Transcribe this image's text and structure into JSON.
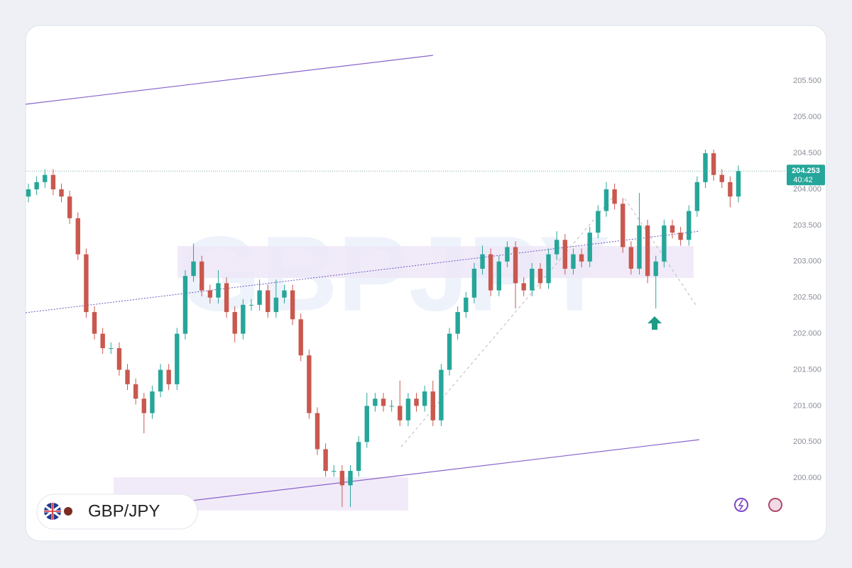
{
  "chart_data": {
    "type": "candlestick",
    "symbol": "GBP/JPY",
    "watermark": "GBPJPY",
    "last_price": 204.253,
    "countdown": "40:42",
    "up_color": "#26a69a",
    "down_color": "#c9584f",
    "ylim": [
      199.55,
      206.23
    ],
    "yticks": [
      {
        "value": 200,
        "label": "200.000"
      },
      {
        "value": 200.5,
        "label": "200.500"
      },
      {
        "value": 201,
        "label": "201.000"
      },
      {
        "value": 201.5,
        "label": "201.500"
      },
      {
        "value": 202,
        "label": "202.000"
      },
      {
        "value": 202.5,
        "label": "202.500"
      },
      {
        "value": 203,
        "label": "203.000"
      },
      {
        "value": 203.5,
        "label": "203.500"
      },
      {
        "value": 204,
        "label": "204.000"
      },
      {
        "value": 204.5,
        "label": "204.500"
      },
      {
        "value": 205,
        "label": "205.000"
      },
      {
        "value": 205.5,
        "label": "205.500"
      }
    ],
    "open": [
      203.9,
      204.0,
      204.1,
      204.2,
      204.0,
      203.9,
      203.6,
      203.1,
      202.3,
      202.0,
      201.8,
      201.8,
      201.5,
      201.3,
      201.1,
      200.9,
      201.2,
      201.5,
      201.3,
      202.0,
      202.8,
      203.0,
      202.6,
      202.5,
      202.7,
      202.3,
      202.0,
      202.4,
      202.4,
      202.6,
      202.3,
      202.5,
      202.6,
      202.2,
      201.7,
      200.9,
      200.4,
      200.1,
      200.1,
      199.9,
      200.1,
      200.5,
      201.0,
      201.1,
      201.0,
      201.0,
      200.8,
      201.1,
      201.0,
      201.2,
      200.8,
      201.5,
      202.0,
      202.3,
      202.5,
      202.9,
      203.1,
      202.6,
      203.0,
      203.2,
      202.7,
      202.6,
      202.9,
      202.7,
      203.1,
      203.3,
      202.9,
      203.1,
      203.0,
      203.4,
      203.7,
      204.0,
      203.8,
      203.2,
      202.9,
      203.5,
      202.8,
      203.0,
      203.5,
      203.4,
      203.3,
      203.7,
      204.1,
      204.5,
      204.2,
      204.1,
      203.9
    ],
    "close": [
      204.0,
      204.1,
      204.2,
      204.0,
      203.9,
      203.6,
      203.1,
      202.3,
      202.0,
      201.8,
      201.8,
      201.5,
      201.3,
      201.1,
      200.9,
      201.2,
      201.5,
      201.3,
      202.0,
      202.8,
      203.0,
      202.6,
      202.5,
      202.7,
      202.3,
      202.0,
      202.4,
      202.4,
      202.6,
      202.3,
      202.5,
      202.6,
      202.2,
      201.7,
      200.9,
      200.4,
      200.1,
      200.1,
      199.9,
      200.1,
      200.5,
      201.0,
      201.1,
      201.0,
      201.0,
      200.8,
      201.1,
      201.0,
      201.2,
      200.8,
      201.5,
      202.0,
      202.3,
      202.5,
      202.9,
      203.1,
      202.6,
      203.0,
      203.2,
      202.7,
      202.6,
      202.9,
      202.7,
      203.1,
      203.3,
      202.9,
      203.1,
      203.0,
      203.4,
      203.7,
      204.0,
      203.8,
      203.2,
      202.9,
      203.5,
      202.8,
      203.0,
      203.5,
      203.4,
      203.3,
      203.7,
      204.1,
      204.5,
      204.2,
      204.1,
      203.9,
      204.253
    ],
    "high": [
      204.08,
      204.18,
      204.28,
      204.28,
      204.08,
      203.98,
      203.68,
      203.18,
      202.38,
      202.08,
      201.88,
      201.88,
      201.58,
      201.38,
      201.18,
      201.28,
      201.58,
      201.58,
      202.08,
      202.88,
      203.25,
      203.08,
      202.68,
      202.88,
      202.78,
      202.38,
      202.48,
      202.48,
      202.75,
      202.68,
      202.75,
      202.68,
      202.68,
      202.28,
      201.78,
      200.98,
      200.48,
      200.18,
      200.18,
      200.18,
      200.58,
      201.18,
      201.18,
      201.18,
      201.08,
      201.35,
      201.18,
      201.18,
      201.28,
      201.35,
      201.58,
      202.08,
      202.38,
      202.58,
      202.98,
      203.22,
      203.18,
      203.08,
      203.28,
      203.28,
      202.78,
      202.98,
      202.98,
      203.18,
      203.42,
      203.38,
      203.18,
      203.18,
      203.48,
      203.78,
      204.1,
      204.08,
      203.88,
      203.28,
      203.95,
      203.58,
      203.08,
      203.58,
      203.58,
      203.48,
      203.78,
      204.18,
      204.55,
      204.55,
      204.28,
      204.18,
      204.33
    ],
    "low": [
      203.82,
      203.92,
      204.02,
      203.92,
      203.82,
      203.52,
      203.02,
      202.22,
      201.92,
      201.72,
      201.72,
      201.42,
      201.22,
      201.02,
      200.62,
      200.82,
      201.12,
      201.22,
      201.22,
      201.92,
      202.72,
      202.52,
      202.42,
      202.42,
      202.22,
      201.88,
      201.92,
      202.32,
      202.32,
      202.22,
      202.22,
      202.42,
      202.12,
      201.62,
      200.82,
      200.32,
      200.02,
      200.02,
      199.6,
      199.6,
      200.02,
      200.42,
      200.92,
      200.92,
      200.92,
      200.72,
      200.72,
      200.92,
      200.92,
      200.72,
      200.72,
      201.42,
      201.92,
      202.22,
      202.42,
      202.82,
      202.52,
      202.52,
      202.92,
      202.35,
      202.52,
      202.52,
      202.62,
      202.62,
      203.02,
      202.82,
      202.82,
      202.92,
      202.92,
      203.32,
      203.62,
      203.72,
      203.12,
      202.82,
      202.82,
      202.7,
      202.35,
      202.92,
      203.32,
      203.22,
      203.22,
      203.62,
      204.02,
      204.12,
      204.02,
      203.75,
      203.82
    ]
  }
}
